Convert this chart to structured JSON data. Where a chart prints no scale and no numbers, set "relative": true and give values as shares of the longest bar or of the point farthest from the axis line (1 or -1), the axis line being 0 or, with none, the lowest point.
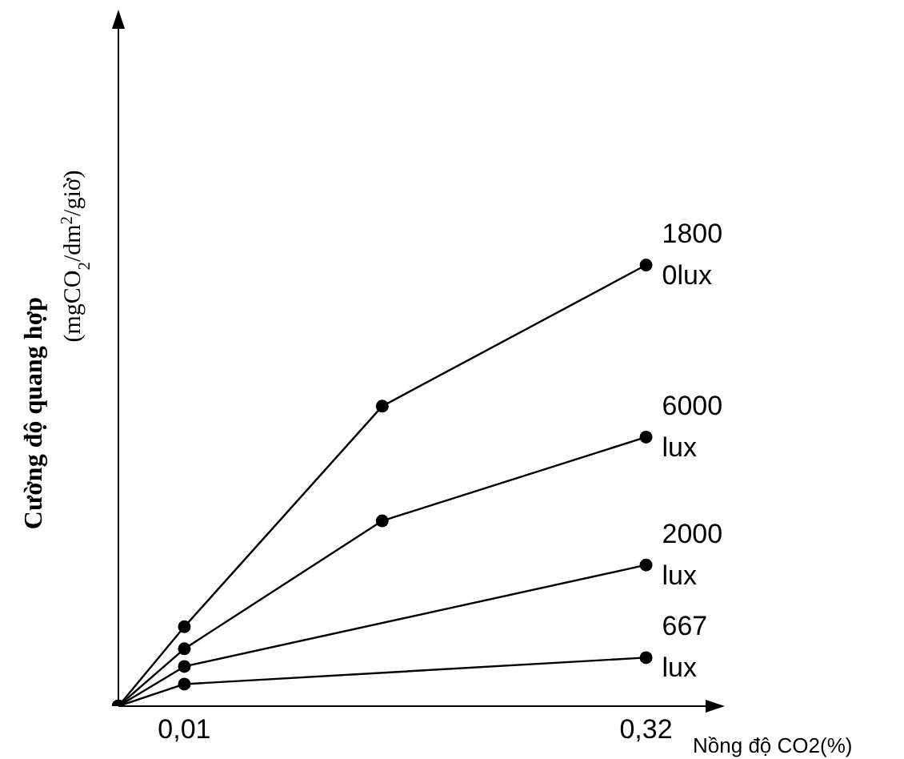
{
  "chart_data": {
    "type": "line",
    "relative": true,
    "xlabel": "Nồng độ CO2(%)",
    "ylabel": "Cường độ quang hợp (mgCO$_{2}$/dm$^{2}$/giờ)",
    "categories": [
      null,
      "0,01",
      null,
      null,
      null,
      null,
      null,
      null,
      "0,32",
      null
    ],
    "marker": "circle",
    "legend": false,
    "grid": false,
    "series": [
      {
        "name": "1800 0lux",
        "color": "#000000",
        "values": [
          0,
          0.18,
          null,
          null,
          0.68,
          null,
          null,
          null,
          1,
          null
        ]
      },
      {
        "name": "6000 lux",
        "color": "#000000",
        "values": [
          0,
          0.13,
          null,
          null,
          0.42,
          null,
          null,
          null,
          0.61,
          null
        ]
      },
      {
        "name": "2000 lux",
        "color": "#000000",
        "values": [
          0,
          0.09,
          null,
          null,
          null,
          null,
          null,
          null,
          0.32,
          null
        ]
      },
      {
        "name": "667 lux",
        "color": "#000000",
        "values": [
          0,
          0.05,
          null,
          null,
          null,
          null,
          null,
          null,
          0.11,
          null
        ]
      }
    ]
  }
}
